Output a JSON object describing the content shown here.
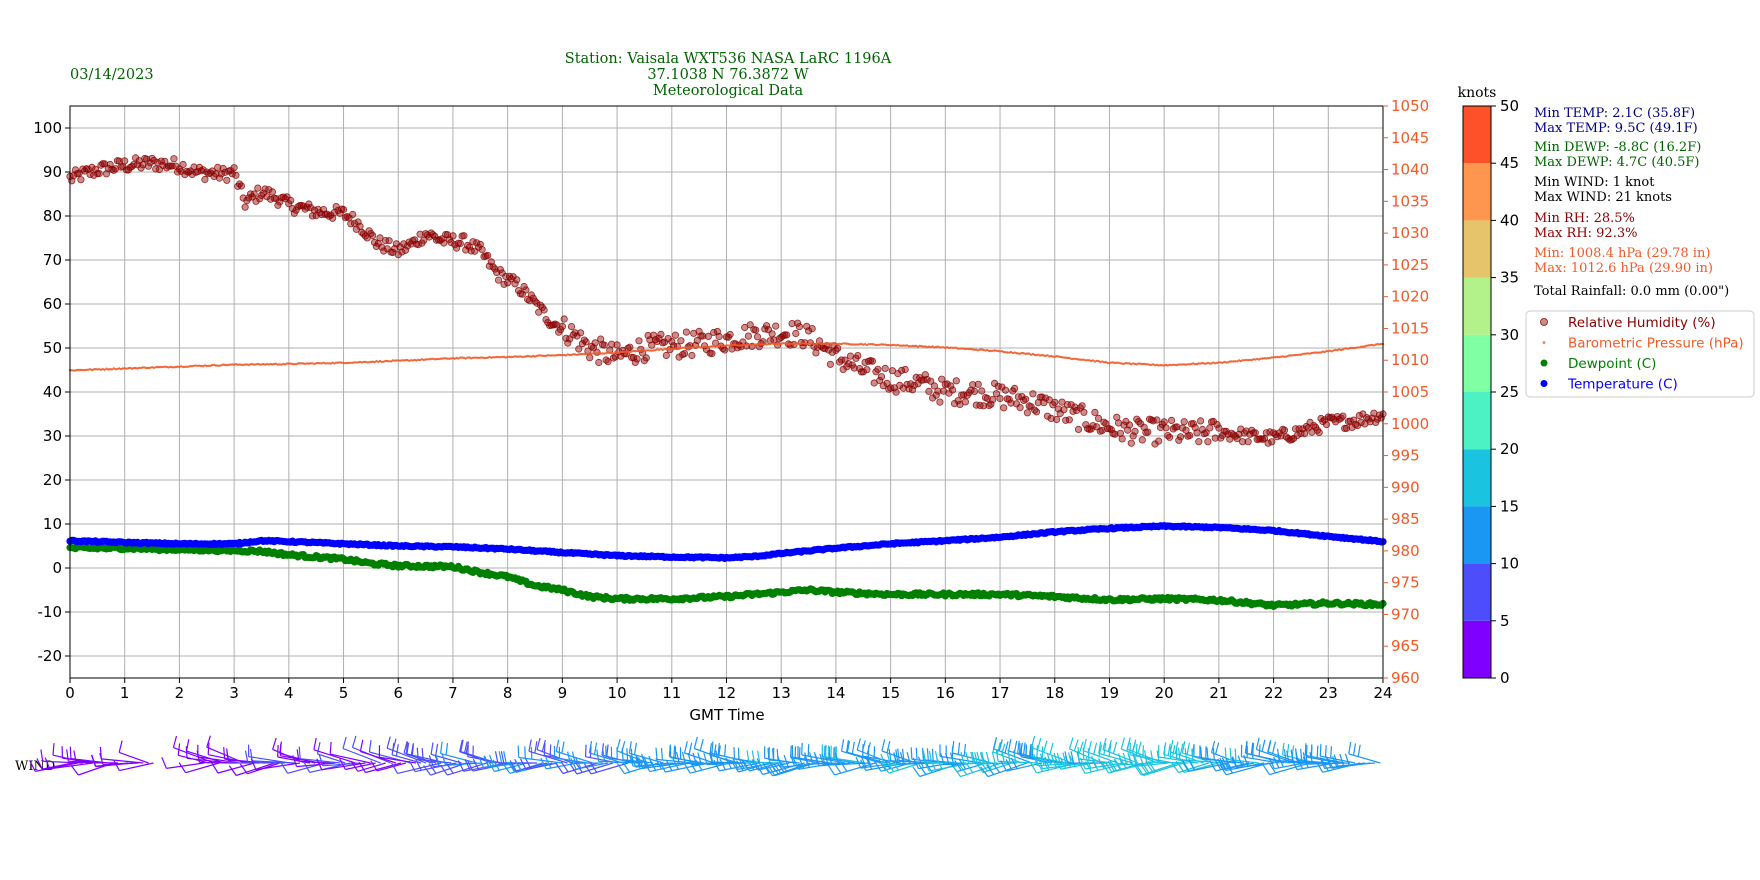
{
  "date": "03/14/2023",
  "title": {
    "line1": "Station:  Vaisala WXT536  NASA LaRC 1196A",
    "line2": "37.1038 N 76.3872 W",
    "line3": "Meteorological Data"
  },
  "stats": [
    {
      "text": "Min TEMP: 2.1C (35.8F)",
      "color": "#000080"
    },
    {
      "text": "Max TEMP: 9.5C (49.1F)",
      "color": "#000080"
    },
    {
      "text": "Min DEWP: -8.8C (16.2F)",
      "color": "#006400"
    },
    {
      "text": "Max DEWP: 4.7C (40.5F)",
      "color": "#006400"
    },
    {
      "text": "Min WIND: 1 knot",
      "color": "#000000"
    },
    {
      "text": "Max WIND: 21 knots",
      "color": "#000000"
    },
    {
      "text": "Min RH: 28.5%",
      "color": "#8b0000"
    },
    {
      "text": "Max RH: 92.3%",
      "color": "#8b0000"
    },
    {
      "text": "Min: 1008.4 hPa (29.78 in)",
      "color": "#f05a28"
    },
    {
      "text": "Max: 1012.6 hPa (29.90 in)",
      "color": "#f05a28"
    },
    {
      "text": "Total Rainfall: 0.0 mm (0.00\")",
      "color": "#000000"
    }
  ],
  "colors": {
    "rh": "#8b0000",
    "pressure": "#f05a28",
    "dewpoint": "#008000",
    "temperature": "#0000ff",
    "title": "#006400"
  },
  "wind_label": "WIND",
  "chart_data": {
    "type": "line",
    "xlabel": "GMT Time",
    "x_ticks": [
      0,
      1,
      2,
      3,
      4,
      5,
      6,
      7,
      8,
      9,
      10,
      11,
      12,
      13,
      14,
      15,
      16,
      17,
      18,
      19,
      20,
      21,
      22,
      23,
      24
    ],
    "xlim": [
      0,
      24
    ],
    "ylim_left": [
      -25,
      105
    ],
    "y_ticks_left": [
      -20,
      -10,
      0,
      10,
      20,
      30,
      40,
      50,
      60,
      70,
      80,
      90,
      100
    ],
    "ylim_right": [
      960,
      1050
    ],
    "y_ticks_right": [
      960,
      965,
      970,
      975,
      980,
      985,
      990,
      995,
      1000,
      1005,
      1010,
      1015,
      1020,
      1025,
      1030,
      1035,
      1040,
      1045,
      1050
    ],
    "grid": true,
    "legend_position": "right",
    "series": [
      {
        "name": "Relative Humidity (%)",
        "axis": "left",
        "marker": "circle",
        "points": [
          [
            0,
            88.5
          ],
          [
            0.5,
            90.5
          ],
          [
            1,
            91.5
          ],
          [
            1.5,
            92
          ],
          [
            2,
            91.5
          ],
          [
            2.3,
            90
          ],
          [
            2.8,
            89.5
          ],
          [
            3,
            90
          ],
          [
            3.05,
            88
          ],
          [
            3.2,
            83
          ],
          [
            3.5,
            85.5
          ],
          [
            3.8,
            84
          ],
          [
            4,
            82.5
          ],
          [
            4.5,
            81
          ],
          [
            5,
            80.5
          ],
          [
            5.3,
            78
          ],
          [
            5.6,
            74
          ],
          [
            6,
            72
          ],
          [
            6.3,
            74
          ],
          [
            6.5,
            76
          ],
          [
            6.8,
            74.5
          ],
          [
            7.2,
            74
          ],
          [
            7.5,
            72
          ],
          [
            7.8,
            67
          ],
          [
            8.2,
            64
          ],
          [
            8.5,
            60
          ],
          [
            8.8,
            56
          ],
          [
            9.2,
            53
          ],
          [
            9.5,
            50
          ],
          [
            10,
            48
          ],
          [
            10.5,
            50
          ],
          [
            11,
            50.5
          ],
          [
            11.5,
            51
          ],
          [
            12,
            52
          ],
          [
            12.5,
            53
          ],
          [
            13,
            53.5
          ],
          [
            13.4,
            53
          ],
          [
            13.8,
            50
          ],
          [
            14,
            48
          ],
          [
            14.5,
            45
          ],
          [
            15,
            43
          ],
          [
            15.5,
            42
          ],
          [
            16,
            40
          ],
          [
            16.5,
            40
          ],
          [
            17,
            39
          ],
          [
            17.5,
            38
          ],
          [
            18,
            36
          ],
          [
            18.5,
            34
          ],
          [
            19,
            32
          ],
          [
            19.5,
            31
          ],
          [
            20,
            31
          ],
          [
            20.5,
            30.5
          ],
          [
            21,
            31
          ],
          [
            21.5,
            30
          ],
          [
            22,
            29.5
          ],
          [
            22.5,
            31
          ],
          [
            23,
            33
          ],
          [
            23.5,
            33.5
          ],
          [
            24,
            35
          ]
        ]
      },
      {
        "name": "Barometric Pressure (hPa)",
        "axis": "right",
        "marker": "dot",
        "points": [
          [
            0,
            1008.4
          ],
          [
            1,
            1008.7
          ],
          [
            2,
            1009
          ],
          [
            3,
            1009.3
          ],
          [
            4,
            1009.4
          ],
          [
            5,
            1009.6
          ],
          [
            6,
            1009.9
          ],
          [
            7,
            1010.3
          ],
          [
            8,
            1010.5
          ],
          [
            9,
            1010.8
          ],
          [
            10,
            1011.2
          ],
          [
            11,
            1011.8
          ],
          [
            12,
            1012.3
          ],
          [
            13,
            1012.6
          ],
          [
            14,
            1012.6
          ],
          [
            15,
            1012.4
          ],
          [
            16,
            1012
          ],
          [
            17,
            1011.4
          ],
          [
            18,
            1010.6
          ],
          [
            19,
            1009.6
          ],
          [
            20,
            1009.2
          ],
          [
            21,
            1009.6
          ],
          [
            22,
            1010.4
          ],
          [
            23,
            1011.4
          ],
          [
            24,
            1012.6
          ]
        ]
      },
      {
        "name": "Dewpoint (C)",
        "axis": "left",
        "marker": "circle",
        "points": [
          [
            0,
            4.5
          ],
          [
            1,
            4.5
          ],
          [
            2,
            4.2
          ],
          [
            3,
            4
          ],
          [
            3.5,
            3.8
          ],
          [
            4,
            3
          ],
          [
            5,
            2
          ],
          [
            5.5,
            1
          ],
          [
            6,
            0.5
          ],
          [
            7,
            0.3
          ],
          [
            7.5,
            -1
          ],
          [
            8,
            -2
          ],
          [
            8.5,
            -4
          ],
          [
            9,
            -5
          ],
          [
            9.5,
            -6.5
          ],
          [
            10,
            -7
          ],
          [
            11,
            -7
          ],
          [
            12,
            -6.5
          ],
          [
            13,
            -5.5
          ],
          [
            13.5,
            -5
          ],
          [
            14,
            -5.5
          ],
          [
            15,
            -6
          ],
          [
            16,
            -6
          ],
          [
            17,
            -6
          ],
          [
            18,
            -6.5
          ],
          [
            19,
            -7.2
          ],
          [
            20,
            -7
          ],
          [
            21,
            -7.3
          ],
          [
            22,
            -8.5
          ],
          [
            23,
            -8
          ],
          [
            24,
            -8.3
          ]
        ]
      },
      {
        "name": "Temperature (C)",
        "axis": "left",
        "marker": "circle",
        "points": [
          [
            0,
            6.2
          ],
          [
            1,
            5.8
          ],
          [
            2,
            5.5
          ],
          [
            3,
            5.5
          ],
          [
            3.5,
            6.2
          ],
          [
            4,
            6
          ],
          [
            5,
            5.5
          ],
          [
            6,
            5
          ],
          [
            7,
            4.8
          ],
          [
            8,
            4.3
          ],
          [
            9,
            3.5
          ],
          [
            10,
            2.8
          ],
          [
            11,
            2.5
          ],
          [
            12,
            2.3
          ],
          [
            12.5,
            2.6
          ],
          [
            13,
            3.3
          ],
          [
            14,
            4.5
          ],
          [
            15,
            5.5
          ],
          [
            16,
            6.2
          ],
          [
            17,
            7
          ],
          [
            18,
            8.2
          ],
          [
            19,
            9
          ],
          [
            20,
            9.5
          ],
          [
            21,
            9.2
          ],
          [
            22,
            8.5
          ],
          [
            23,
            7.2
          ],
          [
            24,
            6
          ]
        ]
      }
    ],
    "colorbar": {
      "label": "knots",
      "ticks": [
        0,
        5,
        10,
        15,
        20,
        25,
        30,
        35,
        40,
        45,
        50
      ],
      "colors": [
        "#8000ff",
        "#4d4dfc",
        "#1a96f3",
        "#1ac4e0",
        "#4cf2c3",
        "#80ffa5",
        "#b3f28a",
        "#e6c46b",
        "#ff964f",
        "#ff5129",
        "#ff0000"
      ]
    },
    "wind_speed_profile": [
      [
        0,
        2
      ],
      [
        3,
        4
      ],
      [
        6,
        5
      ],
      [
        6.8,
        9
      ],
      [
        10,
        11
      ],
      [
        13,
        13
      ],
      [
        16,
        14
      ],
      [
        18,
        16
      ],
      [
        20,
        17
      ],
      [
        22,
        13
      ],
      [
        24,
        12
      ]
    ]
  }
}
